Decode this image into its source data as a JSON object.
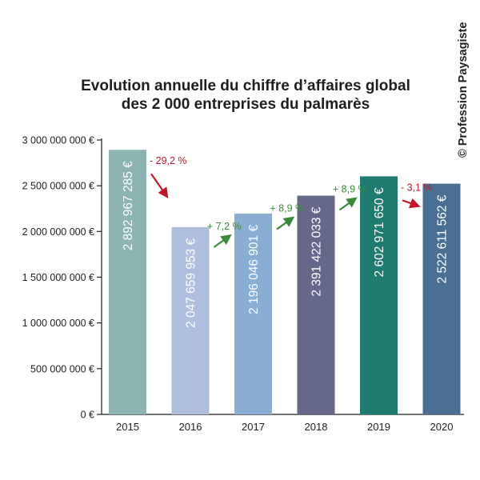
{
  "title_line1": "Evolution annuelle du chiffre d’affaires global",
  "title_line2": "des 2 000 entreprises du palmarès",
  "copyright": "© Profession Paysagiste",
  "colors": {
    "increase": "#3a8a3c",
    "decrease": "#c0182b",
    "axis": "#1e1e1e"
  },
  "chart_data": {
    "type": "bar",
    "categories": [
      "2015",
      "2016",
      "2017",
      "2018",
      "2019",
      "2020"
    ],
    "values": [
      2892967285,
      2047659953,
      2196046901,
      2391422033,
      2602971650,
      2522611562
    ],
    "value_labels": [
      "2 892 967 285 €",
      "2 047 659 953 €",
      "2 196 046 901 €",
      "2 391 422 033 €",
      "2 602 971 650 €",
      "2 522 611 562 €"
    ],
    "bar_colors": [
      "#8db3b3",
      "#aebfdd",
      "#8aaed3",
      "#666889",
      "#1f7a72",
      "#4b6f93"
    ],
    "changes": [
      {
        "from": "2015",
        "to": "2016",
        "label": "- 29,2 %",
        "direction": "down"
      },
      {
        "from": "2016",
        "to": "2017",
        "label": "+ 7,2 %",
        "direction": "up"
      },
      {
        "from": "2017",
        "to": "2018",
        "label": "+ 8,9 %",
        "direction": "up"
      },
      {
        "from": "2018",
        "to": "2019",
        "label": "+ 8,9 %",
        "direction": "up"
      },
      {
        "from": "2019",
        "to": "2020",
        "label": "- 3,1 %",
        "direction": "down"
      }
    ],
    "y_ticks": [
      0,
      500000000,
      1000000000,
      1500000000,
      2000000000,
      2500000000,
      3000000000
    ],
    "y_tick_labels": [
      "0 €",
      "500 000 000 €",
      "1 000 000 000 €",
      "1 500 000 000 €",
      "2 000 000 000 €",
      "2 500 000 000 €",
      "3 000 000 000 €"
    ],
    "ylim": [
      0,
      3000000000
    ],
    "grid": false
  }
}
